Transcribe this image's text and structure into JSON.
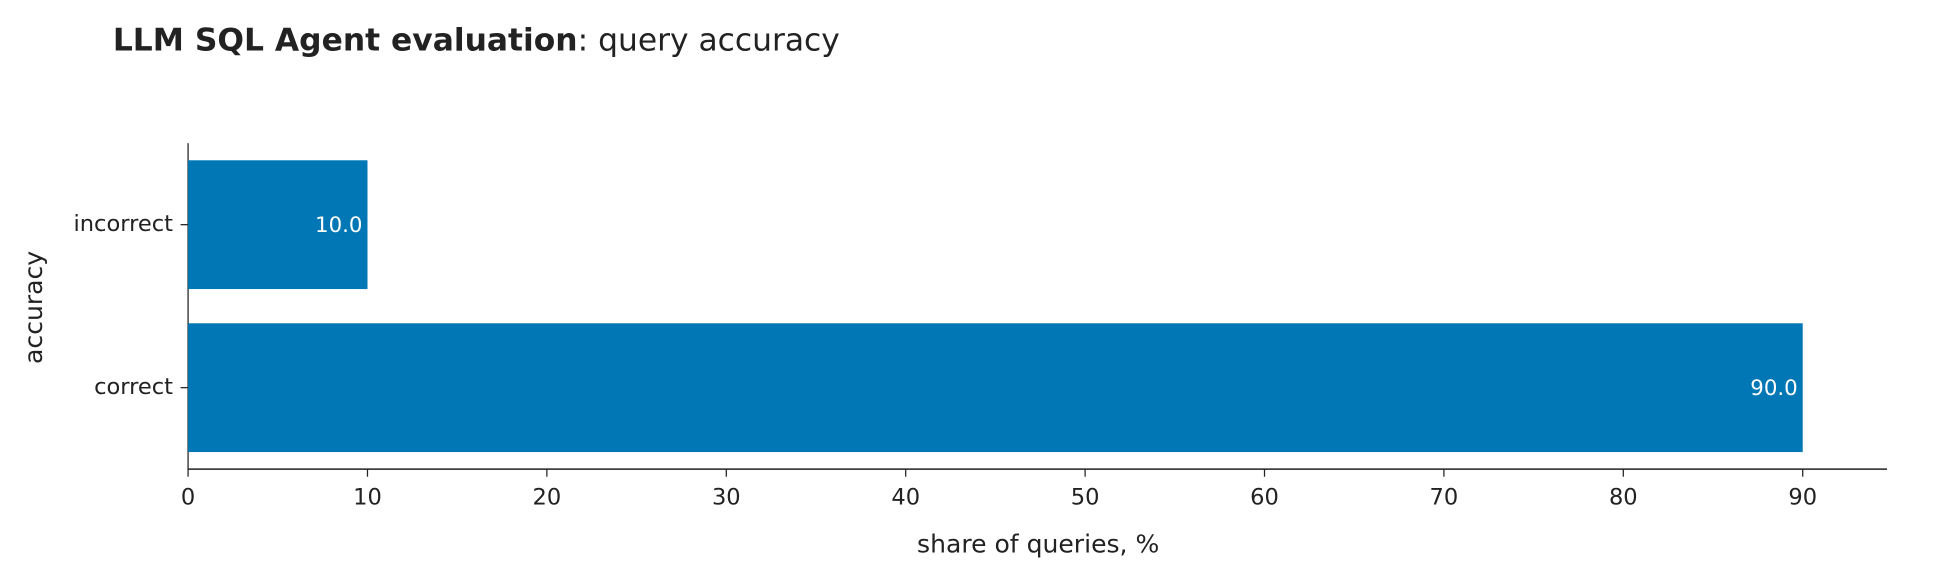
{
  "chart_data": {
    "type": "hbar",
    "title": {
      "bold": "LLM SQL Agent evaluation",
      "regular": ": query accuracy"
    },
    "x_label": "share of queries, %",
    "y_label": "accuracy",
    "categories": [
      "correct",
      "incorrect"
    ],
    "values": [
      90,
      10
    ],
    "value_labels": [
      "90.0",
      "10.0"
    ],
    "color": "#0277b5",
    "xlim": [
      0,
      94.7
    ],
    "xticks": [
      0,
      10,
      20,
      30,
      40,
      50,
      60,
      70,
      80,
      90
    ]
  }
}
